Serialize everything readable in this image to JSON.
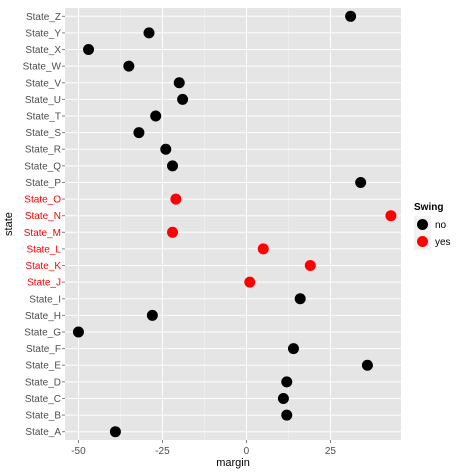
{
  "chart_data": {
    "type": "scatter",
    "xlabel": "margin",
    "ylabel": "state",
    "xlim": [
      -54,
      46
    ],
    "x_ticks": [
      -50,
      -25,
      0,
      25
    ],
    "x_tick_labels": [
      "-50",
      "-25",
      "0",
      "25"
    ],
    "grid": true,
    "legend_position": "right",
    "legend": {
      "title": "Swing",
      "entries": [
        {
          "label": "no",
          "color": "#000000"
        },
        {
          "label": "yes",
          "color": "#ff0000"
        }
      ]
    },
    "colors": {
      "no": "#000000",
      "yes": "#ff0000",
      "panel": "#e5e5e5",
      "grid": "#ffffff",
      "tick_label": "#4d4d4d"
    },
    "categories": [
      "State_A",
      "State_B",
      "State_C",
      "State_D",
      "State_E",
      "State_F",
      "State_G",
      "State_H",
      "State_I",
      "State_J",
      "State_K",
      "State_L",
      "State_M",
      "State_N",
      "State_O",
      "State_P",
      "State_Q",
      "State_R",
      "State_S",
      "State_T",
      "State_U",
      "State_V",
      "State_W",
      "State_X",
      "State_Y",
      "State_Z"
    ],
    "points": [
      {
        "state": "State_A",
        "margin": -39,
        "swing": "no"
      },
      {
        "state": "State_B",
        "margin": 12,
        "swing": "no"
      },
      {
        "state": "State_C",
        "margin": 11,
        "swing": "no"
      },
      {
        "state": "State_D",
        "margin": 12,
        "swing": "no"
      },
      {
        "state": "State_E",
        "margin": 36,
        "swing": "no"
      },
      {
        "state": "State_F",
        "margin": 14,
        "swing": "no"
      },
      {
        "state": "State_G",
        "margin": -50,
        "swing": "no"
      },
      {
        "state": "State_H",
        "margin": -28,
        "swing": "no"
      },
      {
        "state": "State_I",
        "margin": 16,
        "swing": "no"
      },
      {
        "state": "State_J",
        "margin": 1,
        "swing": "yes"
      },
      {
        "state": "State_K",
        "margin": 19,
        "swing": "yes"
      },
      {
        "state": "State_L",
        "margin": 5,
        "swing": "yes"
      },
      {
        "state": "State_M",
        "margin": -22,
        "swing": "yes"
      },
      {
        "state": "State_N",
        "margin": 43,
        "swing": "yes"
      },
      {
        "state": "State_O",
        "margin": -21,
        "swing": "yes"
      },
      {
        "state": "State_P",
        "margin": 34,
        "swing": "no"
      },
      {
        "state": "State_Q",
        "margin": -22,
        "swing": "no"
      },
      {
        "state": "State_R",
        "margin": -24,
        "swing": "no"
      },
      {
        "state": "State_S",
        "margin": -32,
        "swing": "no"
      },
      {
        "state": "State_T",
        "margin": -27,
        "swing": "no"
      },
      {
        "state": "State_U",
        "margin": -19,
        "swing": "no"
      },
      {
        "state": "State_V",
        "margin": -20,
        "swing": "no"
      },
      {
        "state": "State_W",
        "margin": -35,
        "swing": "no"
      },
      {
        "state": "State_X",
        "margin": -47,
        "swing": "no"
      },
      {
        "state": "State_Y",
        "margin": -29,
        "swing": "no"
      },
      {
        "state": "State_Z",
        "margin": 31,
        "swing": "no"
      }
    ]
  }
}
